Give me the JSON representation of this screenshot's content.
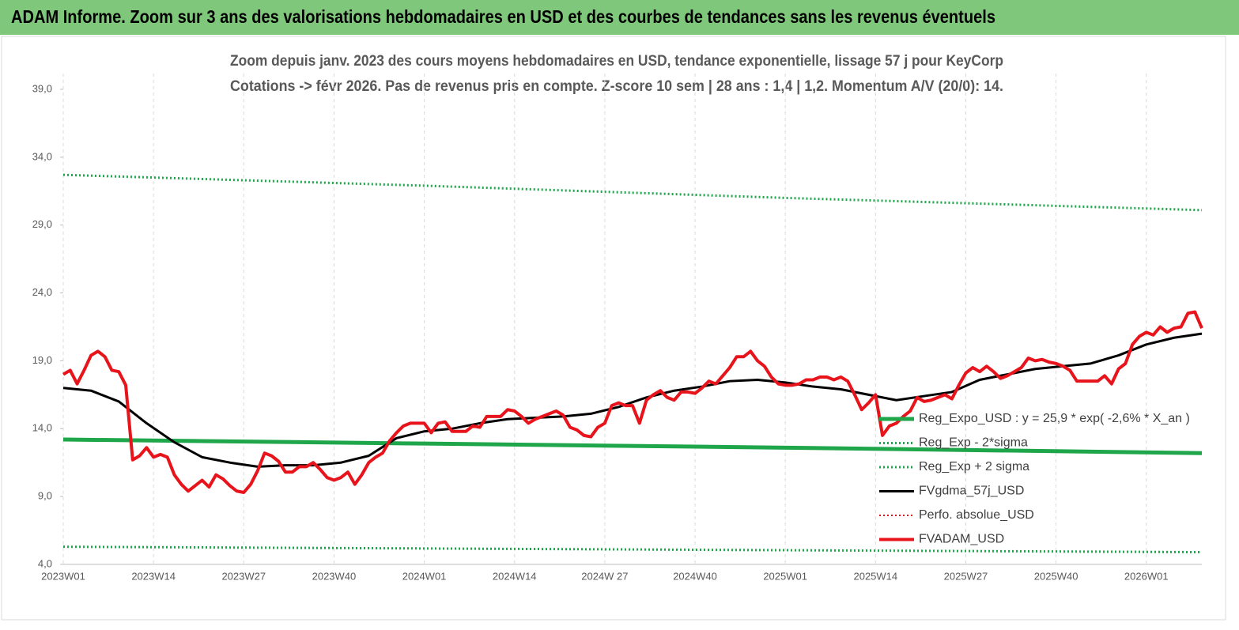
{
  "header": {
    "title": "ADAM Informe. Zoom sur 3 ans des valorisations hebdomadaires en USD et des courbes de tendances sans les revenus éventuels"
  },
  "chart_data": {
    "type": "line",
    "title": "Zoom depuis janv. 2023 des cours moyens hebdomadaires en USD, tendance exponentielle, lissage 57 j pour KeyCorp",
    "subtitle": "Cotations -> févr 2026.  Pas de revenus pris en compte. Z-score 10 sem  | 28 ans : 1,4  | 1,2. Momentum A/V (20/0): 14.",
    "xlim": [
      0,
      164
    ],
    "xticks": [
      {
        "value": 0,
        "label": "2023W01"
      },
      {
        "value": 13,
        "label": "2023W14"
      },
      {
        "value": 26,
        "label": "2023W27"
      },
      {
        "value": 39,
        "label": "2023W40"
      },
      {
        "value": 52,
        "label": "2024W01"
      },
      {
        "value": 65,
        "label": "2024W14"
      },
      {
        "value": 78,
        "label": "2024W 27"
      },
      {
        "value": 91,
        "label": "2024W40"
      },
      {
        "value": 104,
        "label": "2025W01"
      },
      {
        "value": 117,
        "label": "2025W14"
      },
      {
        "value": 130,
        "label": "2025W27"
      },
      {
        "value": 143,
        "label": "2025W40"
      },
      {
        "value": 156,
        "label": "2026W01"
      }
    ],
    "ylim": [
      4,
      39
    ],
    "yticks": [
      {
        "value": 4,
        "label": "4,0"
      },
      {
        "value": 9,
        "label": "9,0"
      },
      {
        "value": 14,
        "label": "14,0"
      },
      {
        "value": 19,
        "label": "19,0"
      },
      {
        "value": 24,
        "label": "24,0"
      },
      {
        "value": 29,
        "label": "29,0"
      },
      {
        "value": 34,
        "label": "34,0"
      },
      {
        "value": 39,
        "label": "39,0"
      }
    ],
    "grid": true,
    "legend": "right",
    "series": [
      {
        "name": "Reg_Expo_USD : y = 25,9 * exp( -2,6% *  X_an )",
        "color": "#1fa64a",
        "style": "solid",
        "width": 5,
        "x": [
          0,
          52,
          104,
          164
        ],
        "values": [
          13.2,
          12.9,
          12.6,
          12.2
        ]
      },
      {
        "name": "Reg_Exp - 2*sigma",
        "color": "#1fa64a",
        "style": "dotted",
        "width": 3,
        "x": [
          0,
          82,
          164
        ],
        "values": [
          5.3,
          5.1,
          4.9
        ]
      },
      {
        "name": "Reg_Exp + 2 sigma",
        "color": "#1fa64a",
        "style": "dotted",
        "width": 3,
        "x": [
          0,
          52,
          104,
          164
        ],
        "values": [
          32.7,
          31.9,
          31.0,
          30.1
        ]
      },
      {
        "name": "FVgdma_57j_USD",
        "color": "#000000",
        "style": "solid",
        "width": 3,
        "x": [
          0,
          4,
          8,
          12,
          16,
          20,
          24,
          28,
          32,
          36,
          40,
          44,
          48,
          52,
          56,
          60,
          64,
          68,
          72,
          76,
          80,
          84,
          88,
          92,
          96,
          100,
          104,
          108,
          112,
          116,
          120,
          124,
          128,
          132,
          136,
          140,
          144,
          148,
          152,
          156,
          160,
          164
        ],
        "values": [
          17.0,
          16.8,
          16.0,
          14.4,
          13.0,
          11.9,
          11.5,
          11.2,
          11.3,
          11.3,
          11.5,
          12.0,
          13.3,
          13.8,
          14.0,
          14.4,
          14.7,
          14.8,
          14.9,
          15.1,
          15.6,
          16.3,
          16.8,
          17.1,
          17.5,
          17.6,
          17.4,
          17.1,
          16.9,
          16.5,
          16.1,
          16.4,
          16.7,
          17.6,
          18.0,
          18.4,
          18.6,
          18.8,
          19.4,
          20.2,
          20.7,
          21.0
        ]
      },
      {
        "name": "Perfo. absolue_USD",
        "color": "#e8141b",
        "style": "dotted",
        "width": 2,
        "x": [],
        "values": []
      },
      {
        "name": "FVADAM_USD",
        "color": "#e8141b",
        "style": "solid",
        "width": 4,
        "x": [
          0,
          1,
          2,
          3,
          4,
          5,
          6,
          7,
          8,
          9,
          10,
          11,
          12,
          13,
          14,
          15,
          16,
          17,
          18,
          19,
          20,
          21,
          22,
          23,
          24,
          25,
          26,
          27,
          28,
          29,
          30,
          31,
          32,
          33,
          34,
          35,
          36,
          37,
          38,
          39,
          40,
          41,
          42,
          43,
          44,
          45,
          46,
          47,
          48,
          49,
          50,
          51,
          52,
          53,
          54,
          55,
          56,
          57,
          58,
          59,
          60,
          61,
          62,
          63,
          64,
          65,
          66,
          67,
          68,
          69,
          70,
          71,
          72,
          73,
          74,
          75,
          76,
          77,
          78,
          79,
          80,
          81,
          82,
          83,
          84,
          85,
          86,
          87,
          88,
          89,
          90,
          91,
          92,
          93,
          94,
          95,
          96,
          97,
          98,
          99,
          100,
          101,
          102,
          103,
          104,
          105,
          106,
          107,
          108,
          109,
          110,
          111,
          112,
          113,
          114,
          115,
          116,
          117,
          118,
          119,
          120,
          121,
          122,
          123,
          124,
          125,
          126,
          127,
          128,
          129,
          130,
          131,
          132,
          133,
          134,
          135,
          136,
          137,
          138,
          139,
          140,
          141,
          142,
          143,
          144,
          145,
          146,
          147,
          148,
          149,
          150,
          151,
          152,
          153,
          154,
          155,
          156,
          157,
          158,
          159,
          160,
          161,
          162,
          163,
          164
        ],
        "values": [
          18.0,
          18.3,
          17.3,
          18.3,
          19.4,
          19.7,
          19.3,
          18.3,
          18.2,
          17.2,
          11.7,
          12.0,
          12.6,
          11.9,
          12.1,
          11.9,
          10.6,
          9.9,
          9.4,
          9.8,
          10.2,
          9.7,
          10.6,
          10.3,
          9.8,
          9.4,
          9.3,
          9.9,
          10.9,
          12.2,
          12.0,
          11.6,
          10.8,
          10.8,
          11.2,
          11.2,
          11.5,
          11.0,
          10.4,
          10.2,
          10.4,
          10.8,
          9.9,
          10.6,
          11.5,
          11.9,
          12.2,
          13.1,
          13.7,
          14.2,
          14.4,
          14.4,
          14.4,
          13.7,
          14.4,
          14.5,
          13.8,
          13.8,
          13.8,
          14.2,
          14.1,
          14.9,
          14.9,
          14.9,
          15.4,
          15.3,
          14.9,
          14.4,
          14.7,
          14.9,
          15.1,
          15.3,
          15.0,
          14.1,
          13.9,
          13.5,
          13.4,
          14.1,
          14.4,
          15.7,
          15.9,
          15.7,
          15.7,
          14.4,
          16.1,
          16.5,
          16.8,
          16.3,
          16.1,
          16.7,
          16.7,
          16.6,
          17.0,
          17.5,
          17.3,
          17.9,
          18.5,
          19.3,
          19.3,
          19.7,
          19.0,
          18.6,
          17.8,
          17.3,
          17.2,
          17.2,
          17.3,
          17.6,
          17.6,
          17.8,
          17.8,
          17.6,
          17.8,
          17.5,
          16.5,
          15.4,
          15.9,
          16.5,
          13.5,
          14.2,
          14.4,
          14.9,
          15.3,
          16.3,
          16.0,
          16.1,
          16.3,
          16.5,
          16.2,
          17.2,
          18.1,
          18.5,
          18.2,
          18.6,
          18.2,
          17.7,
          17.9,
          18.2,
          18.5,
          19.2,
          19.0,
          19.1,
          18.9,
          18.8,
          18.6,
          18.3,
          17.5,
          17.5,
          17.5,
          17.5,
          17.9,
          17.3,
          18.4,
          18.8,
          20.2,
          20.8,
          21.1,
          20.9,
          21.5,
          21.1,
          21.4,
          21.5,
          22.5,
          22.6,
          21.4
        ]
      }
    ]
  }
}
